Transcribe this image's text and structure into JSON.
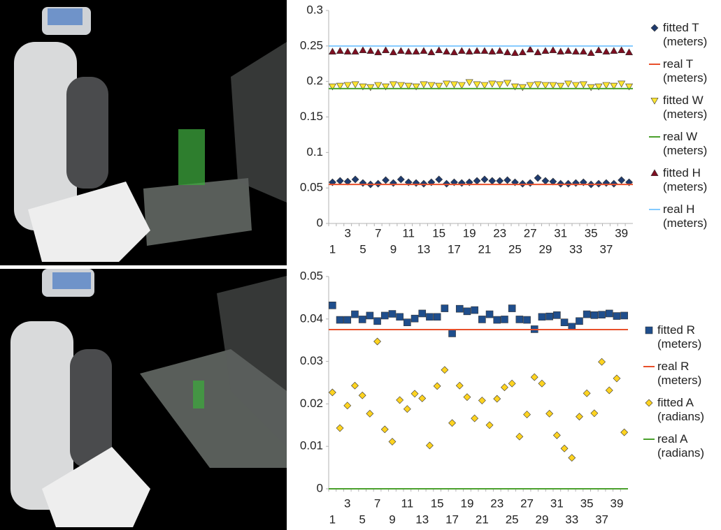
{
  "chart_data": [
    {
      "type": "scatter",
      "categories": [
        "1",
        null,
        "3",
        null,
        "5",
        null,
        "7",
        null,
        "9",
        null,
        "11",
        null,
        "13",
        null,
        "15",
        null,
        "17",
        null,
        "19",
        null,
        "21",
        null,
        "23",
        null,
        "25",
        null,
        "27",
        null,
        "29",
        null,
        "31",
        null,
        "33",
        null,
        "35",
        null,
        "37",
        null,
        "39",
        null
      ],
      "ylim": [
        0,
        0.3
      ],
      "yticks": [
        0,
        0.05,
        0.1,
        0.15,
        0.2,
        0.25,
        0.3
      ],
      "series": [
        {
          "name": "fitted T (meters)",
          "color": "#1f3b6e",
          "marker": "diamond",
          "values": [
            0.058,
            0.06,
            0.059,
            0.062,
            0.057,
            0.055,
            0.056,
            0.061,
            0.057,
            0.062,
            0.058,
            0.057,
            0.056,
            0.058,
            0.062,
            0.056,
            0.058,
            0.057,
            0.058,
            0.06,
            0.062,
            0.06,
            0.06,
            0.061,
            0.058,
            0.056,
            0.057,
            0.064,
            0.06,
            0.059,
            0.056,
            0.056,
            0.057,
            0.058,
            0.055,
            0.056,
            0.057,
            0.056,
            0.061,
            0.058
          ]
        },
        {
          "name": "real T (meters)",
          "color": "#e8502b",
          "value": 0.055
        },
        {
          "name": "fitted W (meters)",
          "color": "#ffe533",
          "marker": "triangle-down",
          "values": [
            0.193,
            0.194,
            0.195,
            0.196,
            0.193,
            0.192,
            0.195,
            0.193,
            0.196,
            0.195,
            0.194,
            0.193,
            0.196,
            0.195,
            0.194,
            0.197,
            0.196,
            0.195,
            0.199,
            0.196,
            0.195,
            0.197,
            0.196,
            0.198,
            0.193,
            0.192,
            0.195,
            0.196,
            0.195,
            0.195,
            0.194,
            0.197,
            0.195,
            0.196,
            0.192,
            0.193,
            0.195,
            0.194,
            0.197,
            0.193
          ]
        },
        {
          "name": "real W (meters)",
          "color": "#4aa02c",
          "value": 0.19
        },
        {
          "name": "fitted H (meters)",
          "color": "#7e0f21",
          "marker": "triangle-up",
          "values": [
            0.242,
            0.243,
            0.242,
            0.242,
            0.244,
            0.243,
            0.241,
            0.244,
            0.241,
            0.243,
            0.242,
            0.242,
            0.243,
            0.241,
            0.244,
            0.242,
            0.241,
            0.243,
            0.242,
            0.243,
            0.243,
            0.242,
            0.243,
            0.241,
            0.24,
            0.241,
            0.245,
            0.241,
            0.243,
            0.244,
            0.242,
            0.243,
            0.242,
            0.242,
            0.24,
            0.244,
            0.242,
            0.243,
            0.244,
            0.241
          ]
        },
        {
          "name": "real H (meters)",
          "color": "#83caff",
          "value": 0.25
        }
      ]
    },
    {
      "type": "scatter",
      "categories": [
        "1",
        null,
        "3",
        null,
        "5",
        null,
        "7",
        null,
        "9",
        null,
        "11",
        null,
        "13",
        null,
        "15",
        null,
        "17",
        null,
        "19",
        null,
        "21",
        null,
        "23",
        null,
        "25",
        null,
        "27",
        null,
        "29",
        null,
        "31",
        null,
        "33",
        null,
        "35",
        null,
        "37",
        null,
        "39",
        null
      ],
      "ylim": [
        0,
        0.05
      ],
      "yticks": [
        0,
        0.01,
        0.02,
        0.03,
        0.04,
        0.05
      ],
      "series": [
        {
          "name": "fitted R (meters)",
          "color": "#1f4e8c",
          "marker": "square",
          "values": [
            0.0432,
            0.0398,
            0.0398,
            0.0411,
            0.0399,
            0.0408,
            0.0395,
            0.0408,
            0.0412,
            0.0405,
            0.0392,
            0.0401,
            0.0413,
            0.0405,
            0.0405,
            0.0425,
            0.0366,
            0.0424,
            0.0418,
            0.0421,
            0.0399,
            0.0411,
            0.0398,
            0.0399,
            0.0425,
            0.0399,
            0.0398,
            0.0376,
            0.0405,
            0.0406,
            0.0409,
            0.0392,
            0.0382,
            0.0395,
            0.0411,
            0.0409,
            0.041,
            0.0413,
            0.0407,
            0.0408
          ]
        },
        {
          "name": "real R (meters)",
          "color": "#e8502b",
          "value": 0.0375
        },
        {
          "name": "fitted A (radians)",
          "color": "#ffd320",
          "marker": "diamond",
          "values": [
            0.0227,
            0.0143,
            0.0196,
            0.0243,
            0.022,
            0.0177,
            0.0347,
            0.014,
            0.0111,
            0.0209,
            0.0188,
            0.0224,
            0.0213,
            0.0102,
            0.0242,
            0.028,
            0.0155,
            0.0243,
            0.0216,
            0.0166,
            0.0208,
            0.015,
            0.0212,
            0.0239,
            0.0248,
            0.0123,
            0.0175,
            0.0263,
            0.0248,
            0.0177,
            0.0126,
            0.0095,
            0.0073,
            0.017,
            0.0225,
            0.0178,
            0.0299,
            0.0232,
            0.026,
            0.0133
          ]
        },
        {
          "name": "real A (radians)",
          "color": "#4aa02c",
          "value": 0
        }
      ]
    }
  ]
}
